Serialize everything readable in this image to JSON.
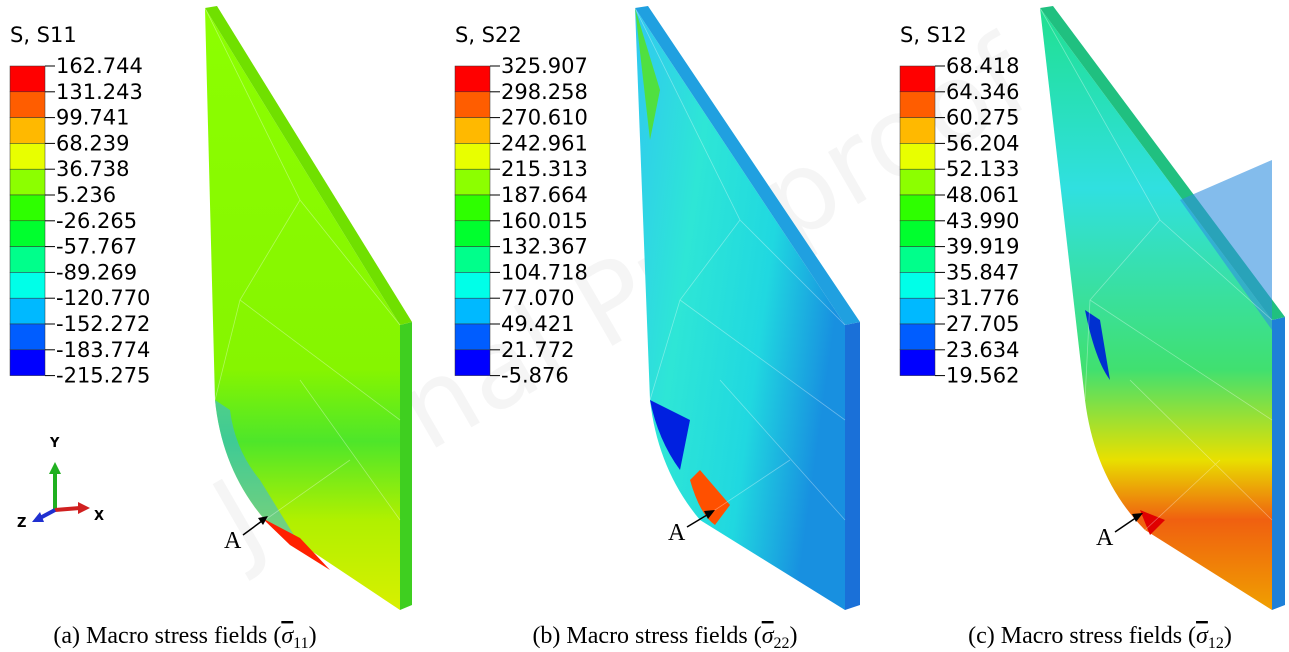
{
  "watermark": "Journal Pre-proof",
  "band_colors": [
    "#ff0000",
    "#ff5d00",
    "#ffb900",
    "#e8ff00",
    "#8cff00",
    "#2eff00",
    "#00ff2e",
    "#00ff8b",
    "#00ffe8",
    "#00b9ff",
    "#005dff",
    "#0000ff"
  ],
  "point_label": "A",
  "triad": {
    "y": "Y",
    "z": "Z",
    "x": "X"
  },
  "panels": [
    {
      "legend_title": "S, S11",
      "levels": [
        "162.744",
        "131.243",
        "99.741",
        "68.239",
        "36.738",
        "5.236",
        "-26.265",
        "-57.767",
        "-89.269",
        "-120.770",
        "-152.272",
        "-183.774",
        "-215.275"
      ],
      "caption": [
        "(a) Macro stress fields (",
        "σ",
        "11",
        ")"
      ]
    },
    {
      "legend_title": "S, S22",
      "levels": [
        "325.907",
        "298.258",
        "270.610",
        "242.961",
        "215.313",
        "187.664",
        "160.015",
        "132.367",
        "104.718",
        "77.070",
        "49.421",
        "21.772",
        "-5.876"
      ],
      "caption": [
        "(b) Macro stress fields (",
        "σ",
        "22",
        ")"
      ]
    },
    {
      "legend_title": "S, S12",
      "levels": [
        "68.418",
        "64.346",
        "60.275",
        "56.204",
        "52.133",
        "48.061",
        "43.990",
        "39.919",
        "35.847",
        "31.776",
        "27.705",
        "23.634",
        "19.562"
      ],
      "caption": [
        "(c) Macro stress fields (",
        "σ",
        "12",
        ")"
      ]
    }
  ]
}
